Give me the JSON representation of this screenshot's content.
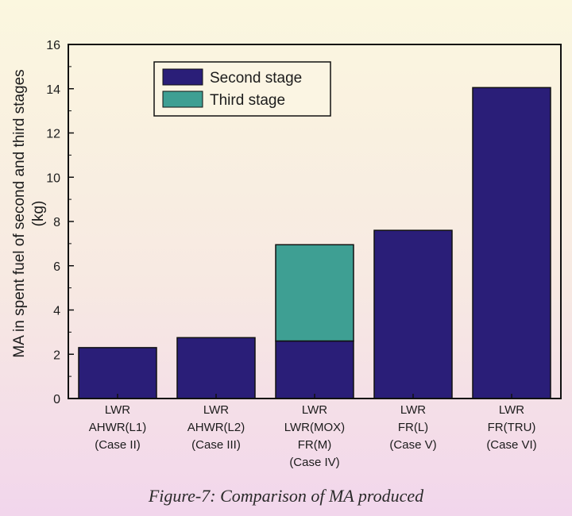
{
  "chart_data": {
    "type": "bar",
    "stacked": true,
    "ylabel_lines": [
      "MA in spent fuel of second and third stages",
      "(kg)"
    ],
    "ylim": [
      0,
      16
    ],
    "yticks": [
      0,
      2,
      4,
      6,
      8,
      10,
      12,
      14,
      16
    ],
    "categories": [
      [
        "LWR",
        "AHWR(L1)",
        "(Case II)"
      ],
      [
        "LWR",
        "AHWR(L2)",
        "(Case III)"
      ],
      [
        "LWR",
        "LWR(MOX)",
        "FR(M)",
        "(Case IV)"
      ],
      [
        "LWR",
        "FR(L)",
        "(Case V)"
      ],
      [
        "LWR",
        "FR(TRU)",
        "(Case VI)"
      ]
    ],
    "series": [
      {
        "name": "Second stage",
        "color": "#2a1e78",
        "values": [
          2.3,
          2.75,
          2.6,
          7.6,
          14.05
        ]
      },
      {
        "name": "Third stage",
        "color": "#3e9f93",
        "values": [
          0,
          0,
          4.35,
          0,
          0
        ]
      }
    ],
    "legend": {
      "position": "top-left"
    }
  },
  "caption": "Figure-7: Comparison of MA produced"
}
